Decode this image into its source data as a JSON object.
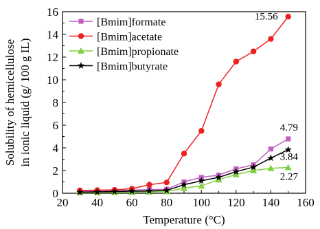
{
  "chart_data": {
    "type": "line",
    "title": "",
    "xlabel": "Temperature (°C)",
    "ylabel": [
      "Solubility of hemicellulose",
      "in ionic liquid (g/ 100 g IL)"
    ],
    "xlim": [
      20,
      160
    ],
    "ylim": [
      0,
      16
    ],
    "xticks": [
      20,
      40,
      60,
      80,
      100,
      120,
      140,
      160
    ],
    "yticks": [
      0,
      2,
      4,
      6,
      8,
      10,
      12,
      14,
      16
    ],
    "grid": false,
    "legend_position": "top-left",
    "x": [
      30,
      40,
      50,
      60,
      70,
      80,
      90,
      100,
      110,
      120,
      130,
      140,
      150
    ],
    "series": [
      {
        "name": "[Bmim]formate",
        "color": "#c060c0",
        "marker": "square",
        "values": [
          0.18,
          0.2,
          0.22,
          0.28,
          0.32,
          0.35,
          1.0,
          1.4,
          1.6,
          2.15,
          2.5,
          3.9,
          4.79
        ],
        "end_label": "4.79"
      },
      {
        "name": "[Bmim]acetate",
        "color": "#ee2020",
        "marker": "circle",
        "values": [
          0.25,
          0.27,
          0.3,
          0.4,
          0.75,
          0.95,
          3.5,
          5.5,
          9.6,
          11.6,
          12.5,
          13.6,
          15.56
        ],
        "end_label": "15.56"
      },
      {
        "name": "[Bmim]propionate",
        "color": "#80d040",
        "marker": "triangle",
        "values": [
          0.05,
          0.06,
          0.08,
          0.1,
          0.12,
          0.15,
          0.45,
          0.65,
          1.2,
          1.65,
          2.0,
          2.2,
          2.27
        ],
        "end_label": "2.27"
      },
      {
        "name": "[Bmim]butyrate",
        "color": "#000000",
        "marker": "star",
        "values": [
          0.1,
          0.12,
          0.15,
          0.18,
          0.2,
          0.25,
          0.75,
          1.1,
          1.4,
          1.9,
          2.3,
          3.1,
          3.84
        ],
        "end_label": "3.84"
      }
    ]
  }
}
